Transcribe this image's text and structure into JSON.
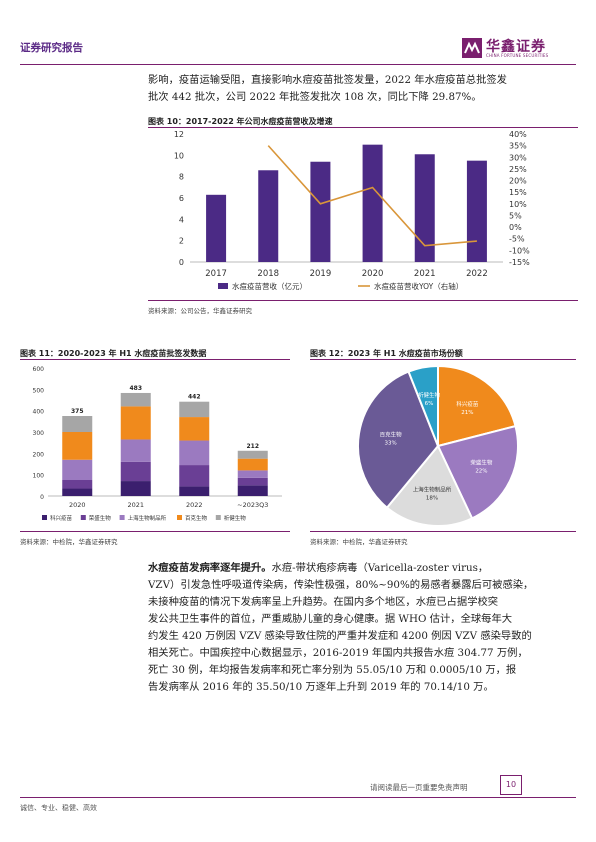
{
  "header": {
    "left": "证券研究报告",
    "logo_name": "华鑫证券",
    "logo_sub": "CHINA FORTUNE SECURITIES"
  },
  "intro": {
    "line1": "影响，疫苗运输受阻，直接影响水痘疫苗批签发量，2022 年水痘疫苗总批签发",
    "line2": "批次 442 批次，公司 2022 年批签发批次 108 次，同比下降 29.87%。"
  },
  "fig10": {
    "title": "图表 10：2017-2022 年公司水痘疫苗营收及增速",
    "source": "资料来源：公司公告，华鑫证券研究",
    "legend_bar": "水痘疫苗营收（亿元）",
    "legend_line": "水痘疫苗营收YOY（右轴）",
    "left_ticks": [
      "0",
      "2",
      "4",
      "6",
      "8",
      "10",
      "12"
    ],
    "right_ticks": [
      "-15%",
      "-10%",
      "-5%",
      "0%",
      "5%",
      "10%",
      "15%",
      "20%",
      "25%",
      "30%",
      "35%",
      "40%"
    ]
  },
  "fig11": {
    "title": "图表 11：2020-2023 年 H1 水痘疫苗批签发数据",
    "source": "资料来源：中检院，华鑫证券研究",
    "y_ticks": [
      "0",
      "100",
      "200",
      "300",
      "400",
      "500",
      "600"
    ]
  },
  "fig12": {
    "title": "图表 12：2023 年 H1 水痘疫苗市场份额",
    "source": "资料来源：中检院，华鑫证券研究"
  },
  "chart_data": [
    {
      "type": "bar",
      "title": "图表 10：2017-2022 年公司水痘疫苗营收及增速",
      "categories": [
        "2017",
        "2018",
        "2019",
        "2020",
        "2021",
        "2022"
      ],
      "series": [
        {
          "name": "水痘疫苗营收（亿元）",
          "values": [
            6.3,
            8.6,
            9.4,
            11.0,
            10.1,
            9.5
          ],
          "axis": "left",
          "kind": "bar"
        },
        {
          "name": "水痘疫苗营收YOY（右轴）",
          "values": [
            null,
            35,
            10,
            17,
            -8,
            -6
          ],
          "axis": "right",
          "kind": "line"
        }
      ],
      "ylim": [
        0,
        12
      ],
      "y2lim": [
        -15,
        40
      ],
      "colors": {
        "bar": "#4b2a85",
        "line": "#d9963a"
      }
    },
    {
      "type": "bar",
      "title": "图表 11：2020-2023 年 H1 水痘疫苗批签发数据",
      "categories": [
        "2020",
        "2021",
        "2022",
        "~2023Q3"
      ],
      "totals": [
        "375",
        "483",
        "442",
        "212"
      ],
      "series": [
        {
          "name": "科兴疫苗",
          "values": [
            35,
            70,
            45,
            50
          ],
          "color": "#3b1f6e"
        },
        {
          "name": "荣盛生物",
          "values": [
            40,
            90,
            100,
            35
          ],
          "color": "#6a3f95"
        },
        {
          "name": "上海生物制品所",
          "values": [
            95,
            105,
            115,
            35
          ],
          "color": "#9b7ac0"
        },
        {
          "name": "百克生物",
          "values": [
            130,
            155,
            110,
            55
          ],
          "color": "#f08a1c"
        },
        {
          "name": "祈健生物",
          "values": [
            75,
            63,
            72,
            37
          ],
          "color": "#a6a6a6"
        }
      ],
      "ylim": [
        0,
        600
      ]
    },
    {
      "type": "pie",
      "title": "图表 12：2023 年 H1 水痘疫苗市场份额",
      "slices": [
        {
          "name": "科兴疫苗",
          "value": 21,
          "label": "21%",
          "color": "#f08a1c"
        },
        {
          "name": "荣盛生物",
          "value": 22,
          "label": "22%",
          "color": "#9b7ac0"
        },
        {
          "name": "上海生物制品所",
          "value": 18,
          "label": "18%",
          "color": "#dcdcdc"
        },
        {
          "name": "百克生物",
          "value": 33,
          "label": "33%",
          "color": "#6a5a96"
        },
        {
          "name": "祈健生物",
          "value": 6,
          "label": "6%",
          "color": "#2aa0c8"
        }
      ]
    }
  ],
  "body": {
    "bold_lead": "水痘疫苗发病率逐年提升。",
    "lines": [
      "水痘-带状疱疹病毒（Varicella-zoster virus，",
      "VZV）引发急性呼吸道传染病，传染性极强，80%~90%的易感者暴露后可被感染，",
      "未接种疫苗的情况下发病率呈上升趋势。在国内多个地区，水痘已占据学校突",
      "发公共卫生事件的首位，严重威胁儿童的身心健康。据 WHO 估计，全球每年大",
      "约发生 420 万例因 VZV 感染导致住院的严重并发症和 4200 例因 VZV 感染导致的",
      "相关死亡。中国疾控中心数据显示，2016-2019 年国内共报告水痘 304.77 万例，",
      "死亡 30 例，年均报告发病率和死亡率分别为 55.05/10 万和 0.0005/10 万，报",
      "告发病率从 2016 年的 35.50/10 万逐年上升到 2019 年的 70.14/10 万。"
    ]
  },
  "footer": {
    "disclaimer": "请阅读最后一页重要免责声明",
    "page": "10",
    "motto": "诚信、专业、稳健、高效"
  }
}
